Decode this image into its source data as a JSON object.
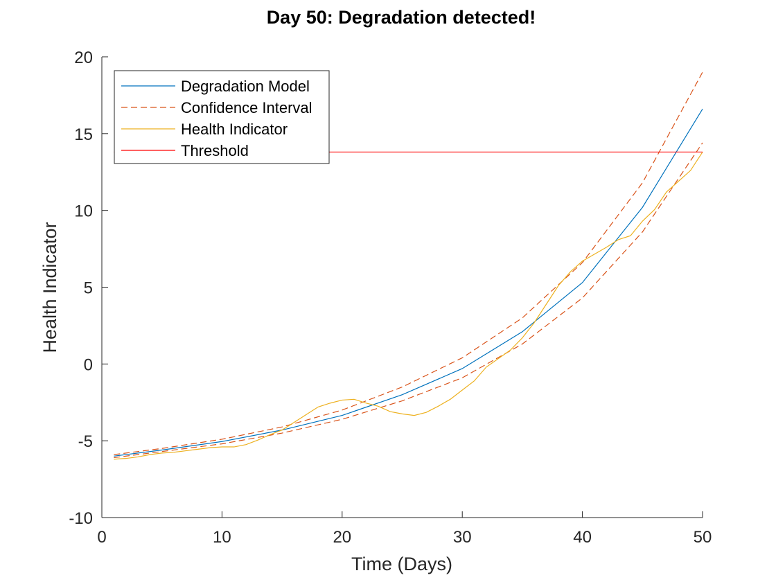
{
  "chart_data": {
    "type": "line",
    "title": "Day 50: Degradation detected!",
    "xlabel": "Time (Days)",
    "ylabel": "Health Indicator",
    "xlim": [
      0,
      50
    ],
    "ylim": [
      -10,
      20
    ],
    "xticks": [
      0,
      10,
      20,
      30,
      40,
      50
    ],
    "yticks": [
      -10,
      -5,
      0,
      5,
      10,
      15,
      20
    ],
    "grid": false,
    "legend_position": "top-left",
    "series": [
      {
        "name": "Degradation Model",
        "style": "solid",
        "color": "#0072BD",
        "x": [
          1,
          5,
          10,
          15,
          20,
          25,
          30,
          35,
          40,
          45,
          50
        ],
        "y": [
          -6.0,
          -5.6,
          -5.05,
          -4.3,
          -3.35,
          -2.0,
          -0.3,
          2.1,
          5.3,
          10.2,
          16.6
        ]
      },
      {
        "name": "Confidence Interval",
        "style": "dashed",
        "color": "#D95319",
        "x": [
          1,
          5,
          10,
          15,
          20,
          25,
          30,
          35,
          40,
          45,
          50
        ],
        "y": [
          -5.9,
          -5.5,
          -4.9,
          -4.1,
          -3.0,
          -1.5,
          0.4,
          3.0,
          6.6,
          11.8,
          19.0
        ]
      },
      {
        "name": "",
        "style": "dashed",
        "color": "#D95319",
        "x": [
          1,
          5,
          10,
          15,
          20,
          25,
          30,
          35,
          40,
          45,
          50
        ],
        "y": [
          -6.1,
          -5.7,
          -5.2,
          -4.5,
          -3.6,
          -2.4,
          -0.9,
          1.3,
          4.3,
          8.6,
          14.4
        ]
      },
      {
        "name": "Health Indicator",
        "style": "solid",
        "color": "#EDB120",
        "x": [
          1,
          2,
          3,
          4,
          5,
          6,
          7,
          8,
          9,
          10,
          11,
          12,
          13,
          14,
          15,
          16,
          17,
          18,
          19,
          20,
          21,
          22,
          23,
          24,
          25,
          26,
          27,
          28,
          29,
          30,
          31,
          32,
          33,
          34,
          35,
          36,
          37,
          38,
          39,
          40,
          41,
          42,
          43,
          44,
          45,
          46,
          47,
          48,
          49,
          50
        ],
        "y": [
          -6.2,
          -6.15,
          -6.05,
          -5.9,
          -5.8,
          -5.75,
          -5.65,
          -5.55,
          -5.45,
          -5.4,
          -5.4,
          -5.25,
          -4.95,
          -4.6,
          -4.3,
          -3.8,
          -3.3,
          -2.8,
          -2.55,
          -2.35,
          -2.3,
          -2.55,
          -2.75,
          -3.1,
          -3.25,
          -3.35,
          -3.15,
          -2.75,
          -2.3,
          -1.7,
          -1.1,
          -0.2,
          0.35,
          0.9,
          1.7,
          2.7,
          3.9,
          5.1,
          6.0,
          6.7,
          7.15,
          7.6,
          8.1,
          8.35,
          9.3,
          10.05,
          11.2,
          11.9,
          12.6,
          13.8
        ]
      },
      {
        "name": "Threshold",
        "style": "solid",
        "color": "#FF0000",
        "x": [
          1,
          50
        ],
        "y": [
          13.8,
          13.8
        ]
      }
    ]
  }
}
